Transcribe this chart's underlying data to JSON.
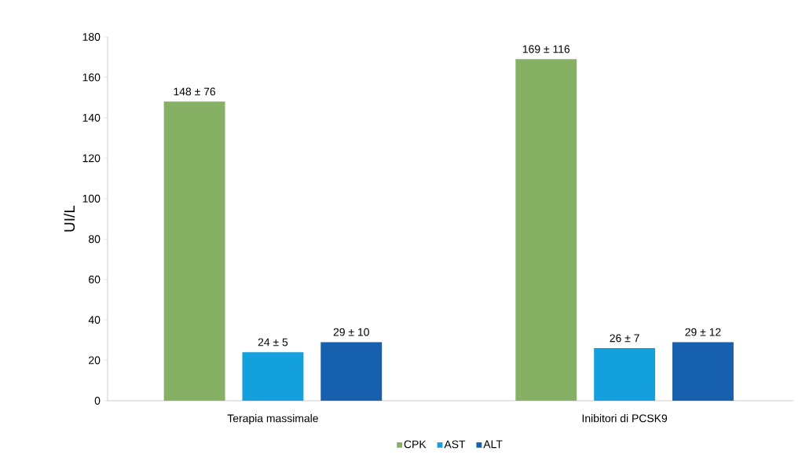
{
  "chart_data": {
    "type": "bar",
    "ylabel": "UI/L",
    "categories": [
      "Terapia massimale",
      "Inibitori di PCSK9"
    ],
    "series": [
      {
        "name": "CPK",
        "color": "#86b064",
        "values": [
          148,
          169
        ],
        "value_labels": [
          "148 ± 76",
          "169 ± 116"
        ]
      },
      {
        "name": "AST",
        "color": "#14a0dc",
        "values": [
          24,
          26
        ],
        "value_labels": [
          "24 ± 5",
          "26 ± 7"
        ]
      },
      {
        "name": "ALT",
        "color": "#1760ae",
        "values": [
          29,
          29
        ],
        "value_labels": [
          "29 ± 10",
          "29 ± 12"
        ]
      }
    ],
    "ylim": [
      0,
      180
    ],
    "yticks": [
      0,
      20,
      40,
      60,
      80,
      100,
      120,
      140,
      160,
      180
    ],
    "legend": "bottom"
  }
}
